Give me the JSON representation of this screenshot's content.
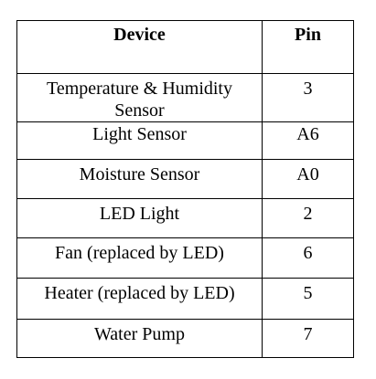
{
  "table": {
    "headers": {
      "device": "Device",
      "pin": "Pin"
    },
    "rows": [
      {
        "device": "Temperature & Humidity Sensor",
        "pin": "3"
      },
      {
        "device": "Light Sensor",
        "pin": "A6"
      },
      {
        "device": "Moisture Sensor",
        "pin": "A0"
      },
      {
        "device": "LED Light",
        "pin": "2"
      },
      {
        "device": "Fan (replaced by LED)",
        "pin": "6"
      },
      {
        "device": "Heater (replaced by LED)",
        "pin": "5"
      },
      {
        "device": "Water Pump",
        "pin": "7"
      }
    ]
  }
}
